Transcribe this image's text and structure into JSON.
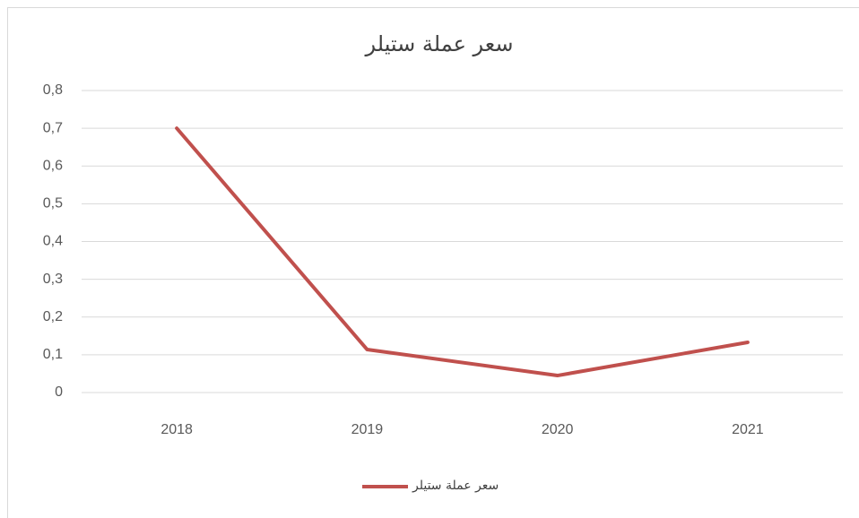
{
  "chart_data": {
    "type": "line",
    "title": "سعر عملة ستيلر",
    "categories": [
      "2018",
      "2019",
      "2020",
      "2021"
    ],
    "series": [
      {
        "name": "سعر عملة ستيلر",
        "color": "#c0504d",
        "values": [
          0.7,
          0.114,
          0.045,
          0.133
        ]
      }
    ],
    "ylim": [
      0,
      0.8
    ],
    "yticks": [
      0,
      {
        "value": 0.1,
        "label": "0,1"
      },
      {
        "value": 0.2,
        "label": "0,2"
      },
      {
        "value": 0.3,
        "label": "0,3"
      },
      {
        "value": 0.4,
        "label": "0,4"
      },
      {
        "value": 0.5,
        "label": "0,5"
      },
      {
        "value": 0.6,
        "label": "0,6"
      },
      {
        "value": 0.7,
        "label": "0,7"
      },
      {
        "value": 0.8,
        "label": "0,8"
      }
    ],
    "grid": true,
    "legend": "bottom"
  }
}
